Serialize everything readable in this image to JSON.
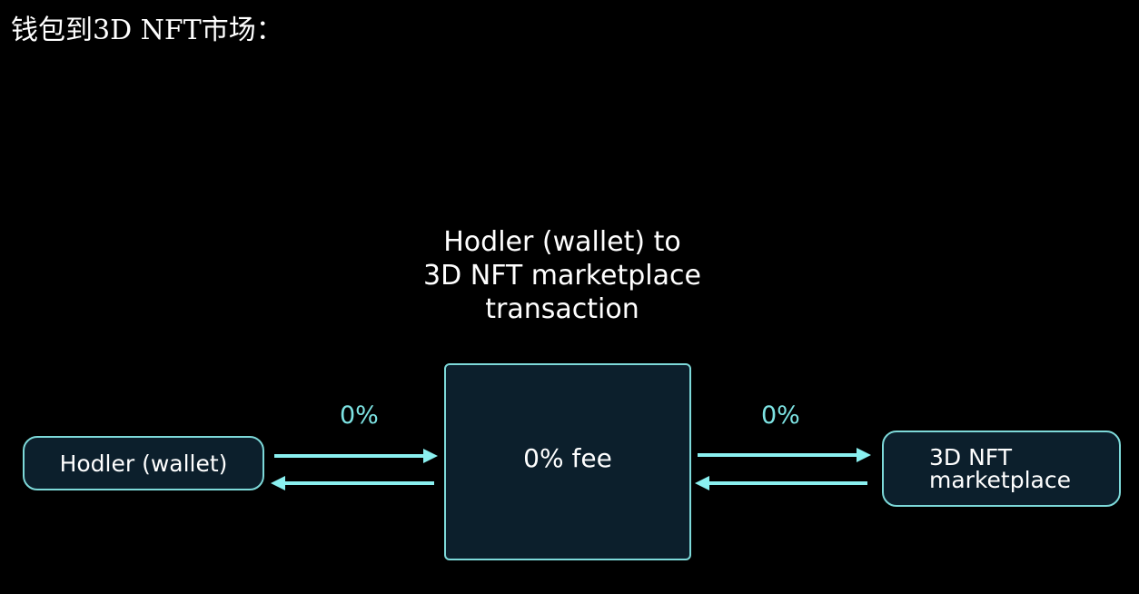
{
  "heading": "钱包到3D NFT市场：",
  "diagram": {
    "title_lines": [
      "Hodler (wallet) to",
      "3D NFT marketplace",
      "transaction"
    ],
    "left_node": "Hodler (wallet)",
    "center_node": "0% fee",
    "right_node_lines": [
      "3D NFT",
      "marketplace"
    ],
    "left_flow_label": "0%",
    "right_flow_label": "0%"
  },
  "colors": {
    "background": "#000000",
    "box_fill": "#0c1f2c",
    "border": "#7dd9d9",
    "accent": "#7de3e3",
    "arrow": "#8af0f0"
  }
}
